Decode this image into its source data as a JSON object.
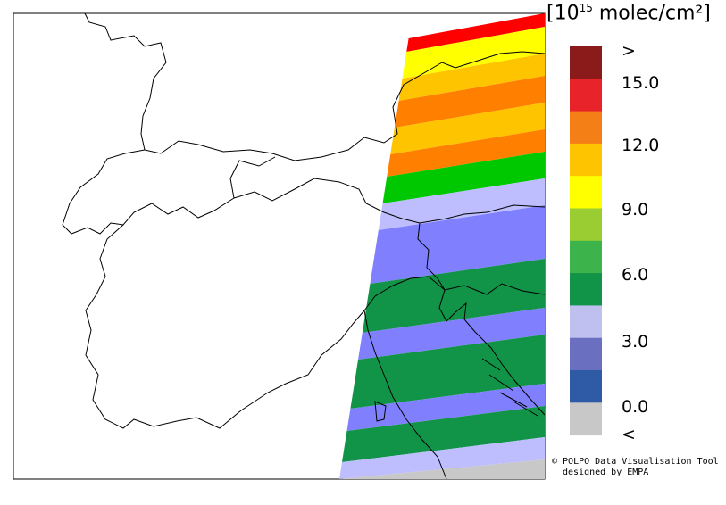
{
  "legend": {
    "unit_prefix": "[10",
    "unit_exponent": "15",
    "unit_suffix": " molec/cm²]",
    "above_symbol": ">",
    "below_symbol": "<",
    "ticks": [
      "15.0",
      "12.0",
      "9.0",
      "6.0",
      "3.0",
      "0.0"
    ],
    "colors": [
      "#8b1a1a",
      "#e8242a",
      "#f57f17",
      "#ffc400",
      "#ffff00",
      "#9acd32",
      "#3cb44b",
      "#129448",
      "#c0c0f0",
      "#6a6fbf",
      "#2e5aa6",
      "#c8c8c8"
    ]
  },
  "credit": {
    "line1": "© POLPO Data Visualisation Tool",
    "line2": "designed by EMPA"
  },
  "swath": {
    "colors": {
      "red": "#ff0000",
      "yellow": "#ffff00",
      "gold": "#ffc400",
      "orange": "#ff8000",
      "green": "#00c800",
      "darkgreen": "#129448",
      "lavender": "#bebeff",
      "blue": "#8080ff",
      "grey": "#c8c8c8"
    },
    "bands": [
      "red",
      "yellow",
      "gold",
      "orange",
      "gold",
      "orange",
      "green",
      "lavender",
      "blue",
      "darkgreen",
      "blue",
      "darkgreen",
      "blue",
      "darkgreen",
      "lavender",
      "grey"
    ]
  }
}
